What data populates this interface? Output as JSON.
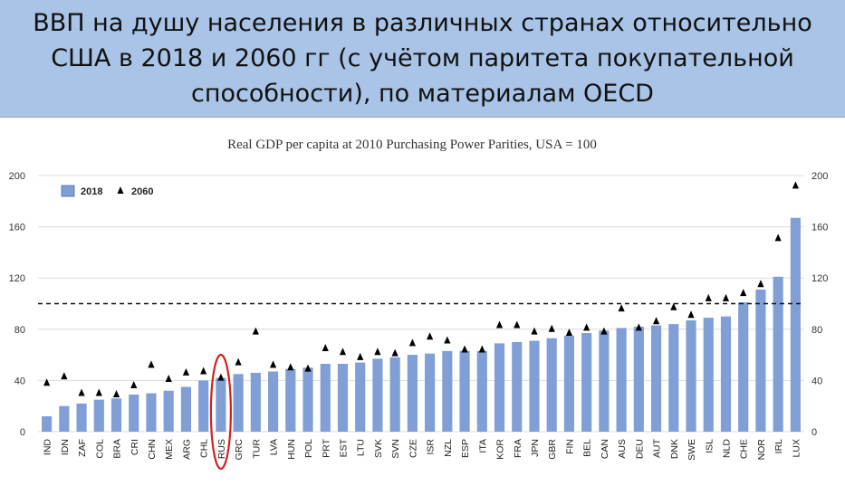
{
  "header": {
    "title": "ВВП на душу населения в различных странах относительно США в 2018 и 2060 гг (с учётом паритета покупательной способности), по материалам OECD"
  },
  "chart_data": {
    "type": "bar",
    "title": "Real GDP per capita at 2010 Purchasing Power Parities, USA = 100",
    "xlabel": "",
    "ylabel": "",
    "ylim": [
      0,
      200
    ],
    "yticks": [
      0,
      40,
      80,
      120,
      160,
      200
    ],
    "reference_line": 100,
    "legend_position": "top-left",
    "highlighted_category": "RUS",
    "colors": {
      "bars": "#7f9fd6",
      "markers": "#000000",
      "highlight": "#d42020"
    },
    "categories": [
      "IND",
      "IDN",
      "ZAF",
      "COL",
      "BRA",
      "CRI",
      "CHN",
      "MEX",
      "ARG",
      "CHL",
      "RUS",
      "GRC",
      "TUR",
      "LVA",
      "HUN",
      "POL",
      "PRT",
      "EST",
      "LTU",
      "SVK",
      "SVN",
      "CZE",
      "ISR",
      "NZL",
      "ESP",
      "ITA",
      "KOR",
      "FRA",
      "JPN",
      "GBR",
      "FIN",
      "BEL",
      "CAN",
      "AUS",
      "DEU",
      "AUT",
      "DNK",
      "SWE",
      "ISL",
      "NLD",
      "CHE",
      "NOR",
      "IRL",
      "LUX"
    ],
    "series": [
      {
        "name": "2018",
        "style": "bar",
        "values": [
          12,
          20,
          22,
          25,
          26,
          29,
          30,
          32,
          35,
          40,
          42,
          45,
          46,
          47,
          49,
          50,
          53,
          53,
          54,
          57,
          58,
          60,
          61,
          63,
          63,
          63,
          69,
          70,
          71,
          73,
          75,
          77,
          79,
          81,
          82,
          83,
          84,
          87,
          89,
          90,
          101,
          111,
          121,
          167
        ]
      },
      {
        "name": "2060",
        "style": "triangle",
        "values": [
          38,
          43,
          30,
          30,
          29,
          36,
          52,
          41,
          46,
          47,
          42,
          54,
          78,
          52,
          50,
          49,
          65,
          62,
          58,
          62,
          61,
          69,
          74,
          71,
          64,
          64,
          83,
          83,
          78,
          80,
          77,
          81,
          78,
          96,
          81,
          86,
          97,
          91,
          104,
          104,
          108,
          115,
          151,
          192
        ]
      }
    ]
  }
}
